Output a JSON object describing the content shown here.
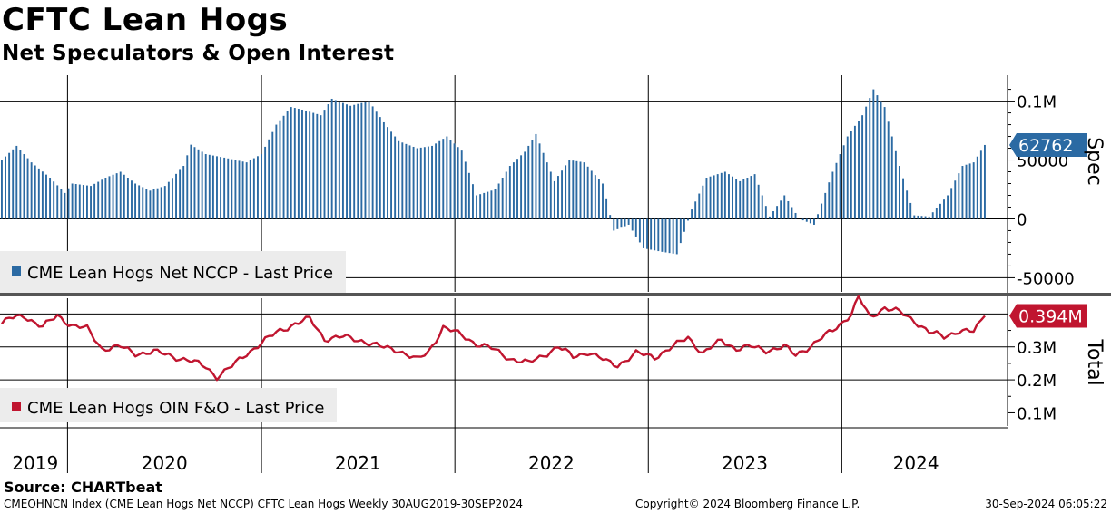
{
  "header": {
    "title": "CFTC Lean Hogs",
    "subtitle": "Net Speculators & Open Interest"
  },
  "footer": {
    "source": "Source: CHARTbeat",
    "index_info": "CMEOHNCN Index (CME Lean Hogs Net NCCP) CFTC Lean Hogs  Weekly 30AUG2019-30SEP2024",
    "copyright": "Copyright© 2024 Bloomberg Finance L.P.",
    "timestamp": "30-Sep-2024 06:05:22"
  },
  "colors": {
    "spec": "#2b6aa3",
    "total": "#c0152f",
    "grid": "#000000",
    "divider": "#555555"
  },
  "chart_data": [
    {
      "type": "bar",
      "series_name": "CME Lean Hogs Net NCCP - Last Price",
      "legend_label": "CME Lean Hogs Net NCCP - Last Price",
      "axis_title": "Spec",
      "ylim": [
        -62000,
        122000
      ],
      "yticks": [
        100000,
        50000,
        0,
        -50000
      ],
      "ytick_labels": [
        "0.1M",
        "50000",
        "0",
        "-50000"
      ],
      "last_value_label": "62762",
      "last_value": 62762,
      "start": "2019-08-30",
      "frequency": "weekly",
      "anchors": [
        [
          "2019-08-30",
          50000
        ],
        [
          "2019-09-27",
          62000
        ],
        [
          "2019-10-25",
          48000
        ],
        [
          "2019-11-29",
          35000
        ],
        [
          "2019-12-27",
          22000
        ],
        [
          "2020-01-10",
          30000
        ],
        [
          "2020-02-14",
          28000
        ],
        [
          "2020-03-13",
          35000
        ],
        [
          "2020-04-10",
          40000
        ],
        [
          "2020-05-08",
          30000
        ],
        [
          "2020-06-05",
          24000
        ],
        [
          "2020-07-03",
          28000
        ],
        [
          "2020-08-07",
          45000
        ],
        [
          "2020-08-21",
          63000
        ],
        [
          "2020-09-18",
          55000
        ],
        [
          "2020-10-23",
          52000
        ],
        [
          "2020-12-04",
          48000
        ],
        [
          "2021-01-01",
          55000
        ],
        [
          "2021-01-29",
          80000
        ],
        [
          "2021-02-26",
          95000
        ],
        [
          "2021-03-26",
          92000
        ],
        [
          "2021-04-23",
          88000
        ],
        [
          "2021-05-14",
          102000
        ],
        [
          "2021-06-18",
          96000
        ],
        [
          "2021-07-23",
          100000
        ],
        [
          "2021-08-20",
          82000
        ],
        [
          "2021-09-17",
          66000
        ],
        [
          "2021-10-22",
          60000
        ],
        [
          "2021-11-19",
          62000
        ],
        [
          "2021-12-17",
          70000
        ],
        [
          "2022-01-14",
          58000
        ],
        [
          "2022-02-11",
          20000
        ],
        [
          "2022-03-18",
          25000
        ],
        [
          "2022-04-15",
          45000
        ],
        [
          "2022-05-13",
          57000
        ],
        [
          "2022-06-03",
          72000
        ],
        [
          "2022-07-08",
          32000
        ],
        [
          "2022-08-05",
          50000
        ],
        [
          "2022-09-02",
          48000
        ],
        [
          "2022-10-07",
          30000
        ],
        [
          "2022-10-28",
          -10000
        ],
        [
          "2022-11-25",
          -5000
        ],
        [
          "2022-12-23",
          -25000
        ],
        [
          "2023-01-27",
          -28000
        ],
        [
          "2023-02-24",
          -30000
        ],
        [
          "2023-03-24",
          8000
        ],
        [
          "2023-04-21",
          35000
        ],
        [
          "2023-05-26",
          40000
        ],
        [
          "2023-06-23",
          32000
        ],
        [
          "2023-07-21",
          38000
        ],
        [
          "2023-08-18",
          2000
        ],
        [
          "2023-09-15",
          20000
        ],
        [
          "2023-10-13",
          0
        ],
        [
          "2023-11-10",
          -5000
        ],
        [
          "2023-12-15",
          40000
        ],
        [
          "2024-01-12",
          70000
        ],
        [
          "2024-02-09",
          88000
        ],
        [
          "2024-03-01",
          110000
        ],
        [
          "2024-03-22",
          95000
        ],
        [
          "2024-04-19",
          45000
        ],
        [
          "2024-05-17",
          3000
        ],
        [
          "2024-06-14",
          2000
        ],
        [
          "2024-07-19",
          20000
        ],
        [
          "2024-08-16",
          45000
        ],
        [
          "2024-09-06",
          48000
        ],
        [
          "2024-09-27",
          62762
        ]
      ]
    },
    {
      "type": "line",
      "series_name": "CME Lean Hogs OIN F&O - Last Price",
      "legend_label": "CME Lean Hogs OIN F&O - Last Price",
      "axis_title": "Total",
      "ylim": [
        60000,
        445000
      ],
      "yticks": [
        300000,
        200000,
        100000
      ],
      "ytick_labels": [
        "0.3M",
        "0.2M",
        "0.1M"
      ],
      "last_value_label": "0.394M",
      "last_value": 394000,
      "start": "2019-08-30",
      "frequency": "weekly",
      "anchors": [
        [
          "2019-08-30",
          370000
        ],
        [
          "2019-09-13",
          385000
        ],
        [
          "2019-10-11",
          395000
        ],
        [
          "2019-11-15",
          360000
        ],
        [
          "2019-12-13",
          395000
        ],
        [
          "2020-01-10",
          365000
        ],
        [
          "2020-02-07",
          355000
        ],
        [
          "2020-03-06",
          295000
        ],
        [
          "2020-04-10",
          300000
        ],
        [
          "2020-05-08",
          280000
        ],
        [
          "2020-06-12",
          285000
        ],
        [
          "2020-07-10",
          275000
        ],
        [
          "2020-08-14",
          260000
        ],
        [
          "2020-09-18",
          240000
        ],
        [
          "2020-10-09",
          210000
        ],
        [
          "2020-11-06",
          240000
        ],
        [
          "2020-12-04",
          280000
        ],
        [
          "2021-01-08",
          320000
        ],
        [
          "2021-02-05",
          350000
        ],
        [
          "2021-03-05",
          370000
        ],
        [
          "2021-04-02",
          385000
        ],
        [
          "2021-04-30",
          325000
        ],
        [
          "2021-06-04",
          330000
        ],
        [
          "2021-07-09",
          320000
        ],
        [
          "2021-08-13",
          300000
        ],
        [
          "2021-09-17",
          290000
        ],
        [
          "2021-10-22",
          260000
        ],
        [
          "2021-11-12",
          285000
        ],
        [
          "2021-12-10",
          360000
        ],
        [
          "2022-01-14",
          335000
        ],
        [
          "2022-02-11",
          310000
        ],
        [
          "2022-03-11",
          295000
        ],
        [
          "2022-04-15",
          265000
        ],
        [
          "2022-05-20",
          250000
        ],
        [
          "2022-06-17",
          275000
        ],
        [
          "2022-07-15",
          300000
        ],
        [
          "2022-08-12",
          270000
        ],
        [
          "2022-09-09",
          285000
        ],
        [
          "2022-10-14",
          255000
        ],
        [
          "2022-11-04",
          245000
        ],
        [
          "2022-12-09",
          280000
        ],
        [
          "2023-01-13",
          270000
        ],
        [
          "2023-02-17",
          300000
        ],
        [
          "2023-03-17",
          330000
        ],
        [
          "2023-04-14",
          280000
        ],
        [
          "2023-05-19",
          320000
        ],
        [
          "2023-06-16",
          295000
        ],
        [
          "2023-07-14",
          300000
        ],
        [
          "2023-08-11",
          290000
        ],
        [
          "2023-09-15",
          300000
        ],
        [
          "2023-10-06",
          275000
        ],
        [
          "2023-11-10",
          310000
        ],
        [
          "2023-12-15",
          350000
        ],
        [
          "2024-01-19",
          400000
        ],
        [
          "2024-02-02",
          450000
        ],
        [
          "2024-02-23",
          390000
        ],
        [
          "2024-03-22",
          420000
        ],
        [
          "2024-04-19",
          405000
        ],
        [
          "2024-05-17",
          380000
        ],
        [
          "2024-06-14",
          345000
        ],
        [
          "2024-07-12",
          330000
        ],
        [
          "2024-08-09",
          350000
        ],
        [
          "2024-09-06",
          345000
        ],
        [
          "2024-09-27",
          394000
        ]
      ]
    }
  ],
  "x_axis": {
    "year_labels": [
      "2019",
      "2020",
      "2021",
      "2022",
      "2023",
      "2024"
    ],
    "year_positions": [
      "2019-11-01",
      "2020-07-02",
      "2021-07-02",
      "2022-07-02",
      "2023-07-02",
      "2024-05-20"
    ],
    "gridlines": [
      "2020-01-01",
      "2021-01-01",
      "2022-01-01",
      "2023-01-01",
      "2024-01-01"
    ]
  }
}
